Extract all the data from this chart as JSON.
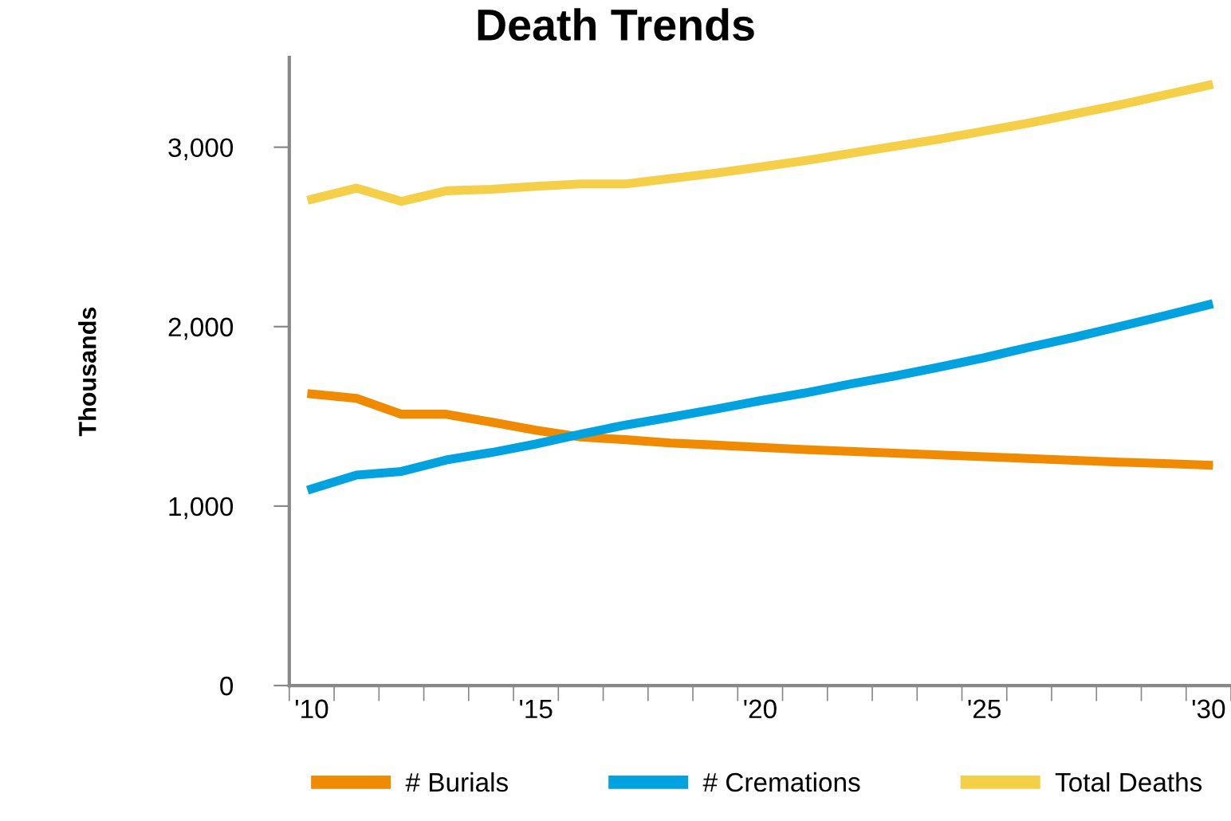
{
  "chart_data": {
    "type": "line",
    "title": "Death Trends",
    "ylabel": "Thousands",
    "categories": [
      "'10",
      null,
      null,
      null,
      null,
      "'15",
      null,
      null,
      null,
      null,
      "'20",
      null,
      null,
      null,
      null,
      "'25",
      null,
      null,
      null,
      null,
      "'30"
    ],
    "series": [
      {
        "name": "# Burials",
        "color": "#f08a00",
        "values": [
          1625,
          1600,
          1512,
          1512,
          1468,
          1423,
          1385,
          1370,
          1352,
          1340,
          1327,
          1315,
          1305,
          1295,
          1285,
          1275,
          1265,
          1255,
          1245,
          1237,
          1228
        ]
      },
      {
        "name": "# Cremations",
        "color": "#00a2e0",
        "values": [
          1096,
          1173,
          1193,
          1257,
          1298,
          1346,
          1401,
          1452,
          1495,
          1540,
          1587,
          1630,
          1680,
          1725,
          1775,
          1827,
          1885,
          1940,
          2000,
          2060,
          2122
        ]
      },
      {
        "name": "Total Deaths",
        "color": "#f5cf47",
        "values": [
          2710,
          2772,
          2698,
          2757,
          2765,
          2782,
          2795,
          2795,
          2825,
          2855,
          2890,
          2925,
          2965,
          3005,
          3045,
          3090,
          3135,
          3185,
          3235,
          3290,
          3345
        ]
      }
    ],
    "ylim": [
      0,
      3500
    ],
    "yticks": [
      0,
      {
        "value": 1000,
        "label": "1,000"
      },
      {
        "value": 2000,
        "label": "2,000"
      },
      {
        "value": 3000,
        "label": "3,000"
      }
    ],
    "grid": false,
    "legend": "bottom",
    "marker": "none",
    "line_style": "solid"
  }
}
